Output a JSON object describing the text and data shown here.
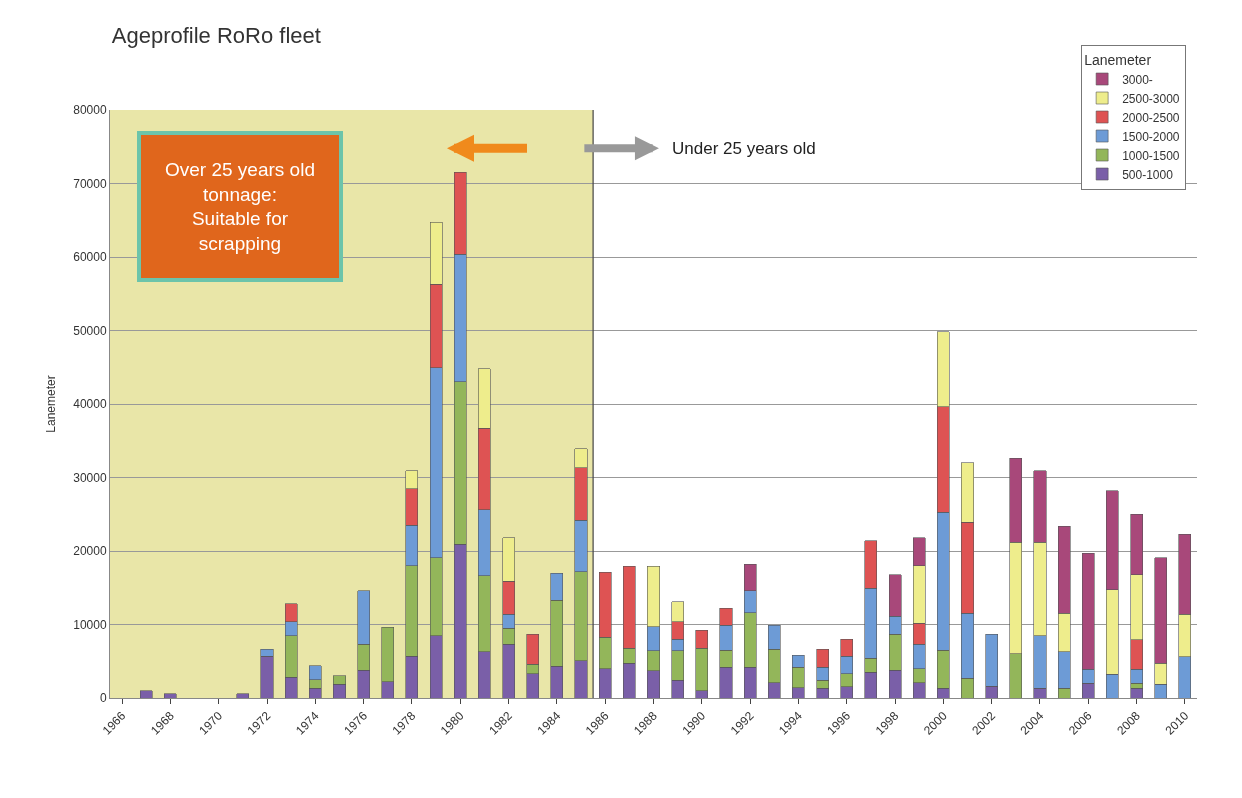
{
  "chart_data": {
    "type": "bar",
    "stacked": true,
    "title": "Ageprofile RoRo fleet",
    "ylabel": "Lanemeter",
    "legend_title": "Lanemeter",
    "x": [
      1967,
      1968,
      1969,
      1970,
      1971,
      1972,
      1973,
      1974,
      1975,
      1976,
      1977,
      1978,
      1979,
      1980,
      1981,
      1982,
      1983,
      1984,
      1985,
      1986,
      1987,
      1988,
      1989,
      1990,
      1991,
      1992,
      1993,
      1994,
      1995,
      1996,
      1997,
      1998,
      1999,
      2000,
      2001,
      2002,
      2003,
      2004,
      2005,
      2006,
      2007,
      2008,
      2009,
      2010
    ],
    "xlim": [
      1965.5,
      2010.5
    ],
    "xticks": [
      1966,
      1968,
      1970,
      1972,
      1974,
      1976,
      1978,
      1980,
      1982,
      1984,
      1986,
      1988,
      1990,
      1992,
      1994,
      1996,
      1998,
      2000,
      2002,
      2004,
      2006,
      2008,
      2010
    ],
    "ylim": [
      0,
      80000
    ],
    "yticks": [
      0,
      10000,
      20000,
      30000,
      40000,
      50000,
      60000,
      70000,
      80000
    ],
    "grid": "y",
    "legend": "top right",
    "series": [
      {
        "name": "500-1000",
        "color": "#7a5fa8",
        "values": [
          1000,
          600,
          null,
          null,
          600,
          5700,
          2800,
          1300,
          1900,
          3800,
          2200,
          5700,
          8500,
          20900,
          6300,
          7300,
          3300,
          4300,
          5100,
          4000,
          4700,
          3700,
          2400,
          1000,
          4200,
          4200,
          2100,
          1400,
          1300,
          1500,
          3500,
          3800,
          2100,
          1300,
          null,
          1600,
          null,
          1300,
          null,
          2000,
          null,
          1300,
          null,
          null
        ]
      },
      {
        "name": "1000-1500",
        "color": "#93b65a",
        "values": [
          null,
          null,
          null,
          null,
          null,
          null,
          5700,
          1200,
          1100,
          3500,
          7400,
          12300,
          10600,
          22100,
          10300,
          2200,
          1300,
          9000,
          12100,
          4300,
          2100,
          2700,
          4000,
          5800,
          2300,
          7400,
          4500,
          2800,
          1100,
          1800,
          1900,
          4900,
          1900,
          5200,
          2700,
          null,
          6000,
          null,
          1300,
          null,
          null,
          700,
          null,
          null
        ]
      },
      {
        "name": "1500-2000",
        "color": "#6d9bd6",
        "values": [
          null,
          null,
          null,
          null,
          null,
          900,
          1900,
          1900,
          null,
          7300,
          null,
          5500,
          25800,
          17400,
          9000,
          1900,
          null,
          3700,
          7000,
          null,
          null,
          3300,
          1600,
          null,
          3400,
          3000,
          3300,
          1600,
          1800,
          2400,
          9500,
          2400,
          3300,
          18800,
          8800,
          7100,
          null,
          7200,
          5000,
          1900,
          3200,
          1900,
          1900,
          5600
        ]
      },
      {
        "name": "2000-2500",
        "color": "#de5353",
        "values": [
          null,
          null,
          null,
          null,
          null,
          null,
          2400,
          null,
          null,
          null,
          null,
          5000,
          11400,
          11100,
          11100,
          4500,
          4100,
          null,
          7100,
          8800,
          11100,
          null,
          2400,
          2400,
          2300,
          null,
          null,
          null,
          2400,
          2300,
          6500,
          null,
          2900,
          14300,
          12400,
          null,
          null,
          null,
          null,
          null,
          null,
          4000,
          null,
          null
        ]
      },
      {
        "name": "2500-3000",
        "color": "#eeed8c",
        "values": [
          null,
          null,
          null,
          null,
          null,
          null,
          null,
          null,
          null,
          null,
          null,
          2400,
          8400,
          null,
          8100,
          5900,
          null,
          null,
          2600,
          null,
          null,
          8200,
          2700,
          null,
          null,
          null,
          null,
          null,
          null,
          null,
          null,
          null,
          7800,
          10200,
          8100,
          null,
          15200,
          12700,
          5200,
          null,
          11500,
          8900,
          2800,
          5800
        ]
      },
      {
        "name": "3000-",
        "color": "#a8487a",
        "values": [
          null,
          null,
          null,
          null,
          null,
          null,
          null,
          null,
          null,
          null,
          null,
          null,
          null,
          null,
          null,
          null,
          null,
          null,
          null,
          null,
          null,
          null,
          null,
          null,
          null,
          3600,
          null,
          null,
          null,
          null,
          null,
          5700,
          3800,
          null,
          null,
          null,
          11400,
          9700,
          11900,
          15800,
          13500,
          8200,
          14400,
          10900
        ]
      }
    ],
    "bands": [
      {
        "axis": "x",
        "from": 1965.5,
        "to": 1985.5,
        "color": "#e9e6a8"
      }
    ],
    "ref_lines": [
      {
        "axis": "x",
        "value": 1985.5,
        "color": "#444444",
        "line_style": "solid"
      }
    ],
    "annotations": [
      "Over 25 years old\ntonnage:\nSuitable for\nscrapping",
      "Under 25 years old"
    ]
  }
}
